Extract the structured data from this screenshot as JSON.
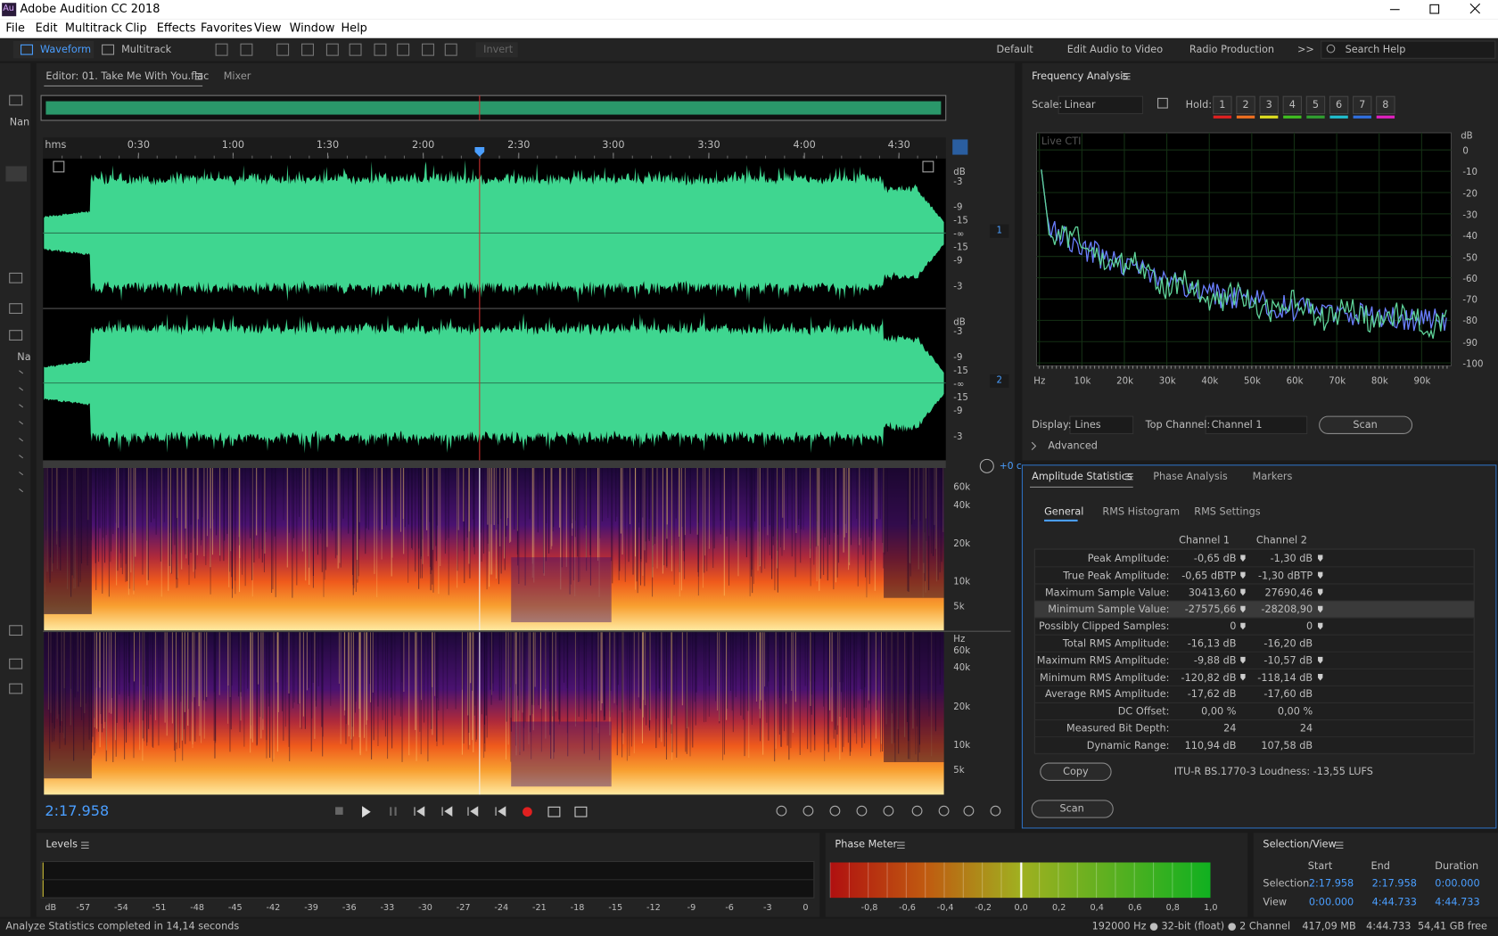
{
  "title_bar": {
    "icon": "Au",
    "title": "Adobe Audition CC 2018"
  },
  "menu": [
    "File",
    "Edit",
    "Multitrack",
    "Clip",
    "Effects",
    "Favorites",
    "View",
    "Window",
    "Help"
  ],
  "toolbar": {
    "modes": [
      "Waveform",
      "Multitrack"
    ],
    "invert": "Invert",
    "workspaces": [
      "Default",
      "Edit Audio to Video",
      "Radio Production"
    ],
    "more": ">>",
    "search": "Search Help"
  },
  "left_panel": {
    "files_label": "Nan",
    "nav_label": "Na"
  },
  "editor": {
    "tab": "Editor: 01. Take Me With You.flac",
    "mixer": "Mixer",
    "timeline": {
      "unit": "hms",
      "labels": [
        "0:30",
        "1:00",
        "1:30",
        "2:00",
        "2:30",
        "3:00",
        "3:30",
        "4:00",
        "4:30"
      ]
    },
    "db_scale": {
      "unit": "dB",
      "labels": [
        "-3",
        "-9",
        "-15",
        "-∞",
        "-15",
        "-9",
        "-3"
      ]
    },
    "channels": [
      "1",
      "2"
    ],
    "hz_scale": {
      "unit": "Hz",
      "labels": [
        "60k",
        "40k",
        "20k",
        "10k",
        "5k"
      ]
    },
    "gain": "+0 c",
    "time": "2:17.958"
  },
  "frequency_analysis": {
    "title": "Frequency Analysis",
    "scale_label": "Scale:",
    "scale": "Linear",
    "hold_label": "Hold:",
    "hold": [
      "1",
      "2",
      "3",
      "4",
      "5",
      "6",
      "7",
      "8"
    ],
    "live": "Live CTI",
    "db_axis": {
      "unit": "dB",
      "labels": [
        "0",
        "-10",
        "-20",
        "-30",
        "-40",
        "-50",
        "-60",
        "-70",
        "-80",
        "-90",
        "-100"
      ]
    },
    "hz_axis": {
      "unit": "Hz",
      "labels": [
        "10k",
        "20k",
        "30k",
        "40k",
        "50k",
        "60k",
        "70k",
        "80k",
        "90k"
      ]
    },
    "display_label": "Display:",
    "display": "Lines",
    "top_channel_label": "Top Channel:",
    "top_channel": "Channel 1",
    "scan": "Scan",
    "advanced": "Advanced"
  },
  "amplitude_statistics": {
    "tabs": [
      "Amplitude Statistics",
      "Phase Analysis",
      "Markers"
    ],
    "subtabs": [
      "General",
      "RMS Histogram",
      "RMS Settings"
    ],
    "columns": [
      "Channel 1",
      "Channel 2"
    ],
    "rows": [
      [
        "Peak Amplitude:",
        "-0,65 dB",
        "-1,30 dB"
      ],
      [
        "True Peak Amplitude:",
        "-0,65 dBTP",
        "-1,30 dBTP"
      ],
      [
        "Maximum Sample Value:",
        "30413,60",
        "27690,46"
      ],
      [
        "Minimum Sample Value:",
        "-27575,66",
        "-28208,90"
      ],
      [
        "Possibly Clipped Samples:",
        "0",
        "0"
      ],
      [
        "Total RMS Amplitude:",
        "-16,13 dB",
        "-16,20 dB"
      ],
      [
        "Maximum RMS Amplitude:",
        "-9,88 dB",
        "-10,57 dB"
      ],
      [
        "Minimum RMS Amplitude:",
        "-120,82 dB",
        "-118,14 dB"
      ],
      [
        "Average RMS Amplitude:",
        "-17,62 dB",
        "-17,60 dB"
      ],
      [
        "DC Offset:",
        "0,00 %",
        "0,00 %"
      ],
      [
        "Measured Bit Depth:",
        "24",
        "24"
      ],
      [
        "Dynamic Range:",
        "110,94 dB",
        "107,58 dB"
      ]
    ],
    "copy": "Copy",
    "loudness": "ITU-R BS.1770-3 Loudness: -13,55 LUFS",
    "scan": "Scan"
  },
  "levels": {
    "title": "Levels",
    "scale": [
      "dB",
      "-57",
      "-54",
      "-51",
      "-48",
      "-45",
      "-42",
      "-39",
      "-36",
      "-33",
      "-30",
      "-27",
      "-24",
      "-21",
      "-18",
      "-15",
      "-12",
      "-9",
      "-6",
      "-3",
      "0"
    ]
  },
  "phase_meter": {
    "title": "Phase Meter",
    "scale": [
      "-0,8",
      "-0,6",
      "-0,4",
      "-0,2",
      "0,0",
      "0,2",
      "0,4",
      "0,6",
      "0,8",
      "1,0"
    ]
  },
  "selection_view": {
    "title": "Selection/View",
    "headers": [
      "Start",
      "End",
      "Duration"
    ],
    "rows": [
      [
        "Selection",
        "2:17.958",
        "2:17.958",
        "0:00.000"
      ],
      [
        "View",
        "0:00.000",
        "4:44.733",
        "4:44.733"
      ]
    ]
  },
  "status_bar": {
    "message": "Analyze Statistics completed in 14,14 seconds",
    "info": [
      "192000 Hz ● 32-bit (float) ● 2 Channel",
      "417,09 MB",
      "4:44.733",
      "54,41 GB free"
    ]
  }
}
